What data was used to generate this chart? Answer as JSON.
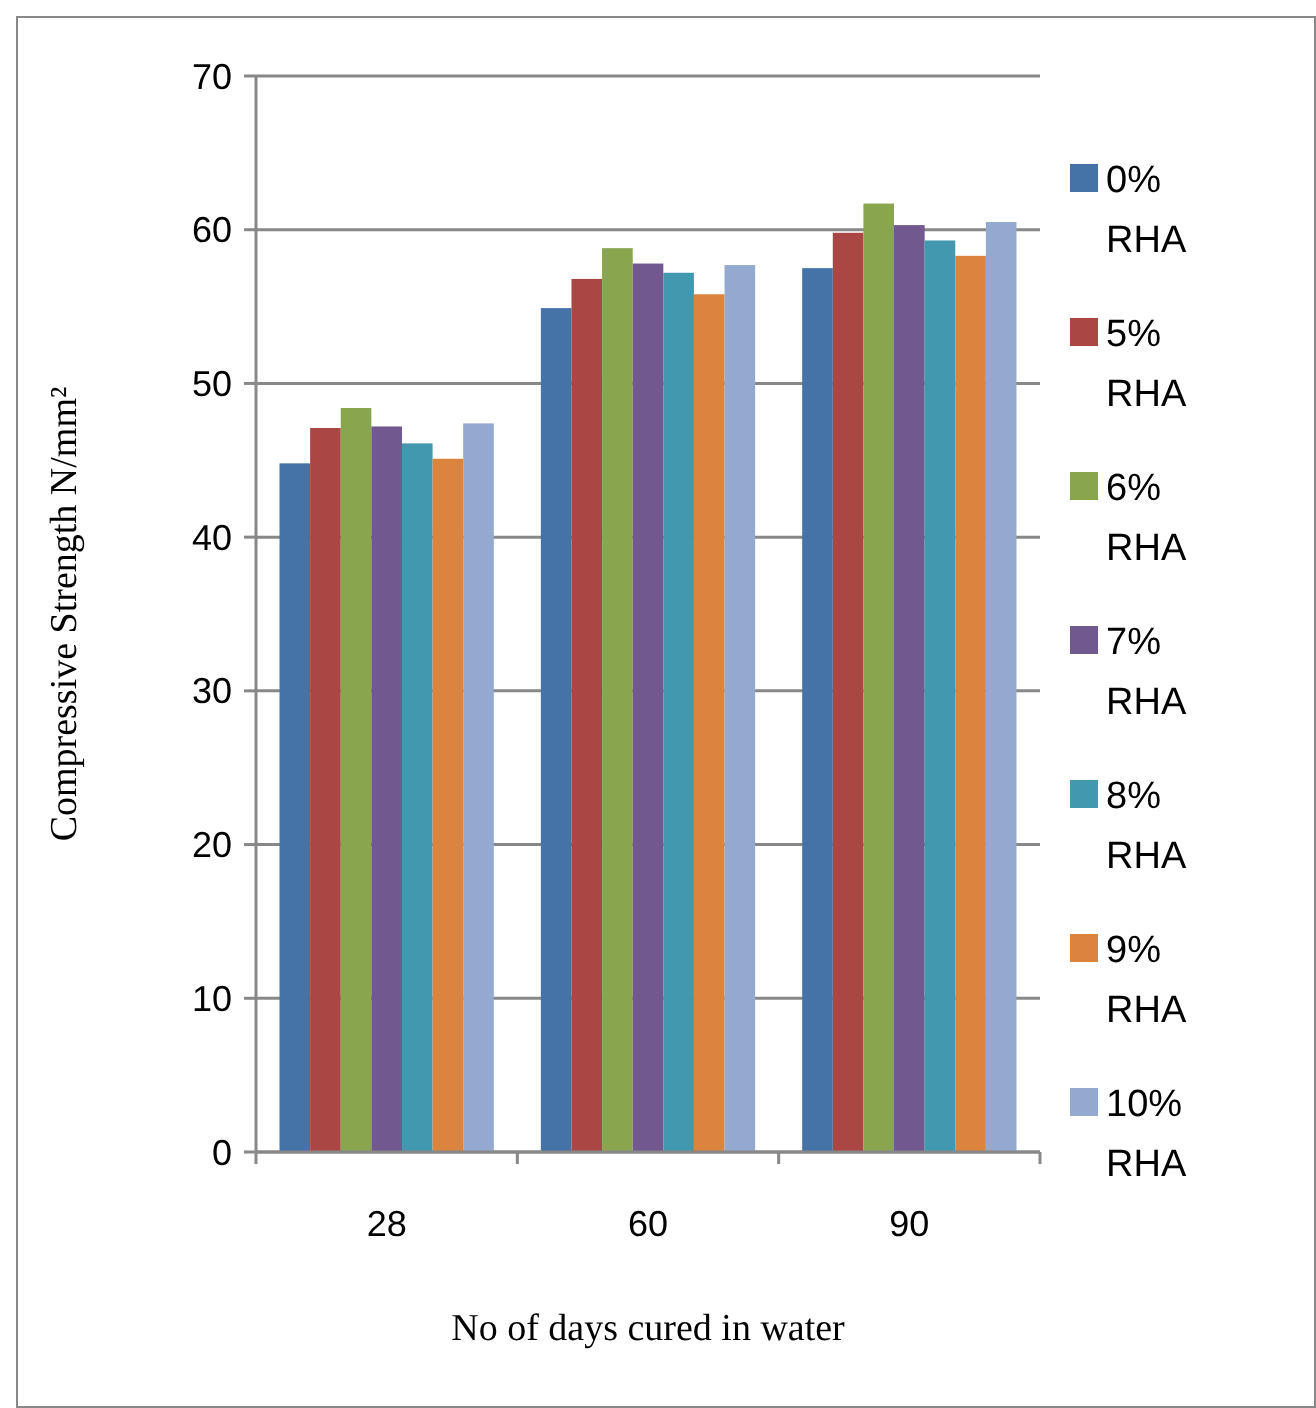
{
  "chart_data": {
    "type": "bar",
    "xlabel": "No of days cured in water",
    "ylabel": "Compressive Strength N/mm²",
    "categories": [
      "28",
      "60",
      "90"
    ],
    "series": [
      {
        "name": "0% RHA",
        "color": "#4572a7",
        "values": [
          44.8,
          54.9,
          57.5
        ]
      },
      {
        "name": "5% RHA",
        "color": "#aa4643",
        "values": [
          47.1,
          56.8,
          59.8
        ]
      },
      {
        "name": "6% RHA",
        "color": "#89a54e",
        "values": [
          48.4,
          58.8,
          61.7
        ]
      },
      {
        "name": "7% RHA",
        "color": "#71588f",
        "values": [
          47.2,
          57.8,
          60.3
        ]
      },
      {
        "name": "8% RHA",
        "color": "#4198af",
        "values": [
          46.1,
          57.2,
          59.3
        ]
      },
      {
        "name": "9% RHA",
        "color": "#db843d",
        "values": [
          45.1,
          55.8,
          58.3
        ]
      },
      {
        "name": "10% RHA",
        "color": "#93a9cf",
        "values": [
          47.4,
          57.7,
          60.5
        ]
      }
    ],
    "ylim": [
      0,
      70
    ],
    "yticks": [
      0,
      10,
      20,
      30,
      40,
      50,
      60,
      70
    ],
    "grid": "y",
    "legend": "right"
  }
}
